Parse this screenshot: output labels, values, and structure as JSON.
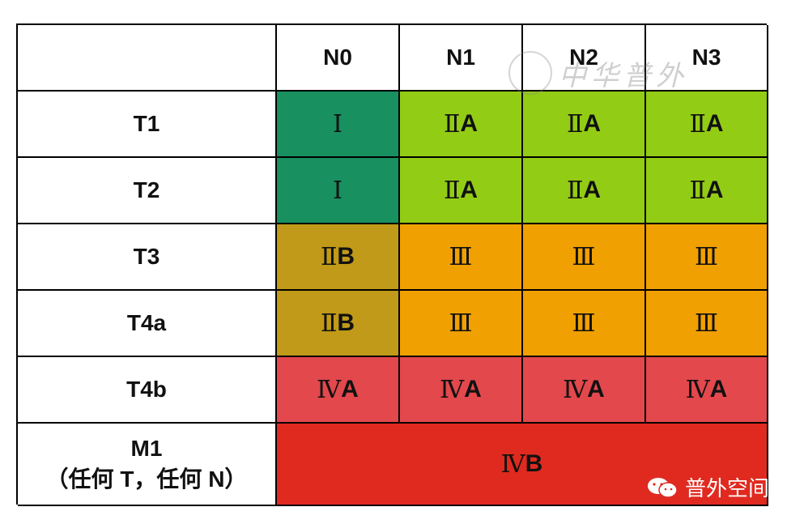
{
  "table": {
    "corner": "",
    "columns": [
      "N0",
      "N1",
      "N2",
      "N3"
    ],
    "rows": [
      {
        "label": "T1",
        "cells": [
          {
            "roman": "Ⅰ",
            "letter": "",
            "color": "#189060"
          },
          {
            "roman": "Ⅱ",
            "letter": "A",
            "color": "#93cc14"
          },
          {
            "roman": "Ⅱ",
            "letter": "A",
            "color": "#93cc14"
          },
          {
            "roman": "Ⅱ",
            "letter": "A",
            "color": "#93cc14"
          }
        ]
      },
      {
        "label": "T2",
        "cells": [
          {
            "roman": "Ⅰ",
            "letter": "",
            "color": "#189060"
          },
          {
            "roman": "Ⅱ",
            "letter": "A",
            "color": "#93cc14"
          },
          {
            "roman": "Ⅱ",
            "letter": "A",
            "color": "#93cc14"
          },
          {
            "roman": "Ⅱ",
            "letter": "A",
            "color": "#93cc14"
          }
        ]
      },
      {
        "label": "T3",
        "cells": [
          {
            "roman": "Ⅱ",
            "letter": "B",
            "color": "#c09a18"
          },
          {
            "roman": "Ⅲ",
            "letter": "",
            "color": "#f0a000"
          },
          {
            "roman": "Ⅲ",
            "letter": "",
            "color": "#f0a000"
          },
          {
            "roman": "Ⅲ",
            "letter": "",
            "color": "#f0a000"
          }
        ]
      },
      {
        "label": "T4a",
        "cells": [
          {
            "roman": "Ⅱ",
            "letter": "B",
            "color": "#c09a18"
          },
          {
            "roman": "Ⅲ",
            "letter": "",
            "color": "#f0a000"
          },
          {
            "roman": "Ⅲ",
            "letter": "",
            "color": "#f0a000"
          },
          {
            "roman": "Ⅲ",
            "letter": "",
            "color": "#f0a000"
          }
        ]
      },
      {
        "label": "T4b",
        "cells": [
          {
            "roman": "Ⅳ",
            "letter": "A",
            "color": "#e2484c"
          },
          {
            "roman": "Ⅳ",
            "letter": "A",
            "color": "#e2484c"
          },
          {
            "roman": "Ⅳ",
            "letter": "A",
            "color": "#e2484c"
          },
          {
            "roman": "Ⅳ",
            "letter": "A",
            "color": "#e2484c"
          }
        ]
      }
    ],
    "m1": {
      "label": "M1",
      "sublabel": "（任何 T，任何 N）",
      "roman": "Ⅳ",
      "letter": "B",
      "color": "#e02a20"
    }
  },
  "watermark": {
    "text": "中华普外",
    "icon": "seal-logo"
  },
  "brand": {
    "text": "普外空间",
    "icon": "wechat-icon"
  }
}
